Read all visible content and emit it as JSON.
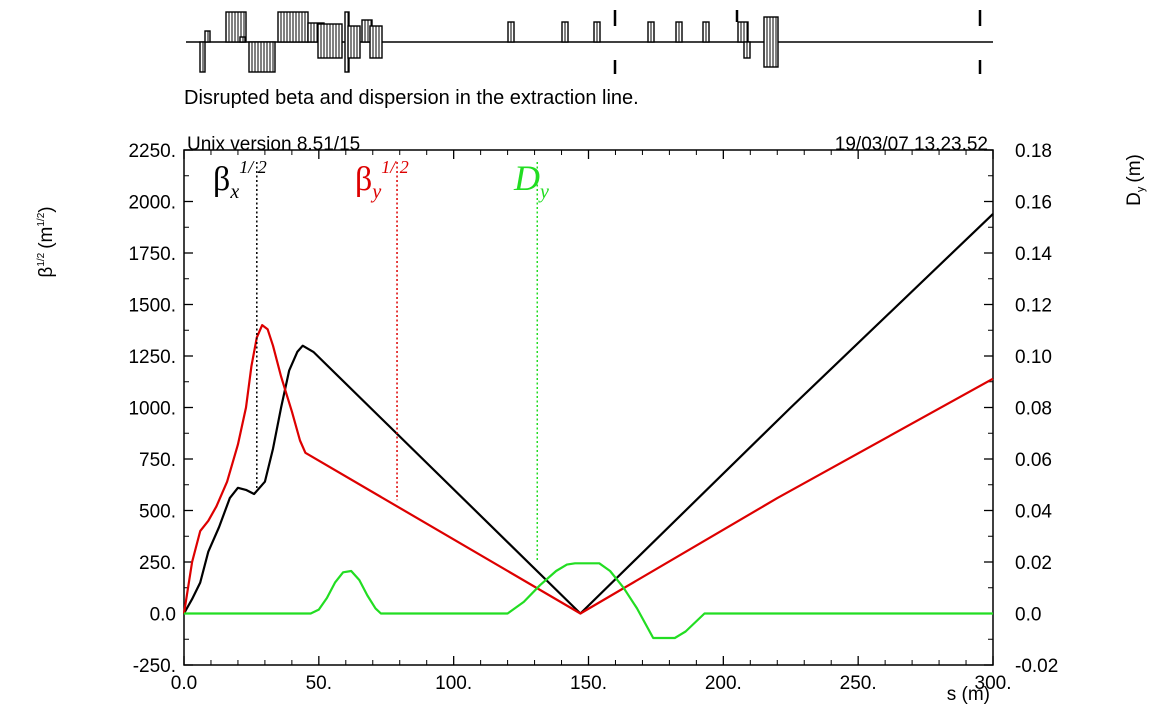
{
  "header": {
    "subtitle": "Disrupted beta and dispersion in the extraction line.",
    "version": "Unix version 8.51/15",
    "datetime": "19/03/07  13.23.52"
  },
  "axes": {
    "left_label_main": "β",
    "left_label_sup": "1/2",
    "left_label_unit": "(m",
    "left_label_unit_sup": "1/2",
    "left_label_close": ")",
    "right_label": "D",
    "right_label_sub": "y",
    "right_label_unit": "(m)",
    "x_label": "s (m)"
  },
  "legend": {
    "bx_main": "β",
    "bx_sub": "x",
    "bx_sup": "1/ 2",
    "by_main": "β",
    "by_sub": "y",
    "by_sup": "1/ 2",
    "dy_main": "D",
    "dy_sub": "y"
  },
  "colors": {
    "beta_x": "#000000",
    "beta_y": "#dd0000",
    "disp_y": "#22dd22"
  },
  "chart_data": {
    "type": "line",
    "title": "Disrupted beta and dispersion in the extraction line.",
    "xlabel": "s (m)",
    "ylabel": "β^1/2 (m^1/2)",
    "y2label": "Dy (m)",
    "xlim": [
      0,
      300
    ],
    "ylim": [
      -250,
      2250
    ],
    "y2lim": [
      -0.02,
      0.18
    ],
    "x_ticks": [
      "0.0",
      "50.",
      "100.",
      "150.",
      "200.",
      "250.",
      "300."
    ],
    "x_tick_values": [
      0,
      50,
      100,
      150,
      200,
      250,
      300
    ],
    "y_ticks": [
      "-250.",
      "0.0",
      "250.",
      "500.",
      "750.",
      "1000.",
      "1250.",
      "1500.",
      "1750.",
      "2000.",
      "2250."
    ],
    "y_tick_values": [
      -250,
      0,
      250,
      500,
      750,
      1000,
      1250,
      1500,
      1750,
      2000,
      2250
    ],
    "y2_ticks": [
      "-0.02",
      "0.0",
      "0.02",
      "0.04",
      "0.06",
      "0.08",
      "0.10",
      "0.12",
      "0.14",
      "0.16",
      "0.18"
    ],
    "y2_tick_values": [
      -0.02,
      0,
      0.02,
      0.04,
      0.06,
      0.08,
      0.1,
      0.12,
      0.14,
      0.16,
      0.18
    ],
    "series": [
      {
        "name": "βx^1/2",
        "axis": "left",
        "points": [
          [
            0,
            0
          ],
          [
            3,
            70
          ],
          [
            6,
            150
          ],
          [
            9,
            300
          ],
          [
            13,
            420
          ],
          [
            17,
            560
          ],
          [
            20,
            610
          ],
          [
            23,
            600
          ],
          [
            26,
            580
          ],
          [
            30,
            640
          ],
          [
            33,
            800
          ],
          [
            36,
            1000
          ],
          [
            39,
            1180
          ],
          [
            42,
            1270
          ],
          [
            44,
            1300
          ],
          [
            48,
            1270
          ],
          [
            147,
            0
          ],
          [
            225,
            1000
          ],
          [
            300,
            1940
          ]
        ]
      },
      {
        "name": "βy^1/2",
        "axis": "left",
        "points": [
          [
            0,
            0
          ],
          [
            3,
            250
          ],
          [
            6,
            400
          ],
          [
            9,
            450
          ],
          [
            12,
            520
          ],
          [
            16,
            640
          ],
          [
            20,
            820
          ],
          [
            23,
            1000
          ],
          [
            25,
            1200
          ],
          [
            27,
            1340
          ],
          [
            29,
            1400
          ],
          [
            31,
            1380
          ],
          [
            33,
            1300
          ],
          [
            36,
            1150
          ],
          [
            40,
            980
          ],
          [
            43,
            840
          ],
          [
            45,
            780
          ],
          [
            147,
            0
          ],
          [
            220,
            560
          ],
          [
            300,
            1140
          ]
        ]
      },
      {
        "name": "Dy",
        "axis": "right",
        "points": [
          [
            0,
            0
          ],
          [
            47,
            0
          ],
          [
            50,
            0.0015
          ],
          [
            53,
            0.006
          ],
          [
            56,
            0.012
          ],
          [
            59,
            0.016
          ],
          [
            62,
            0.0165
          ],
          [
            65,
            0.013
          ],
          [
            68,
            0.007
          ],
          [
            71,
            0.002
          ],
          [
            73,
            0
          ],
          [
            120,
            0
          ],
          [
            126,
            0.0045
          ],
          [
            132,
            0.011
          ],
          [
            138,
            0.0165
          ],
          [
            142,
            0.019
          ],
          [
            145,
            0.0195
          ],
          [
            154,
            0.0195
          ],
          [
            158,
            0.0165
          ],
          [
            163,
            0.01
          ],
          [
            168,
            0.002
          ],
          [
            174,
            -0.0095
          ],
          [
            182,
            -0.0095
          ],
          [
            186,
            -0.007
          ],
          [
            193,
            0
          ],
          [
            300,
            0
          ]
        ]
      }
    ],
    "markers": [
      {
        "name": "βx^1/2",
        "x": 27
      },
      {
        "name": "βy^1/2",
        "x": 79
      },
      {
        "name": "Dy",
        "x": 131
      }
    ],
    "grid": false
  }
}
